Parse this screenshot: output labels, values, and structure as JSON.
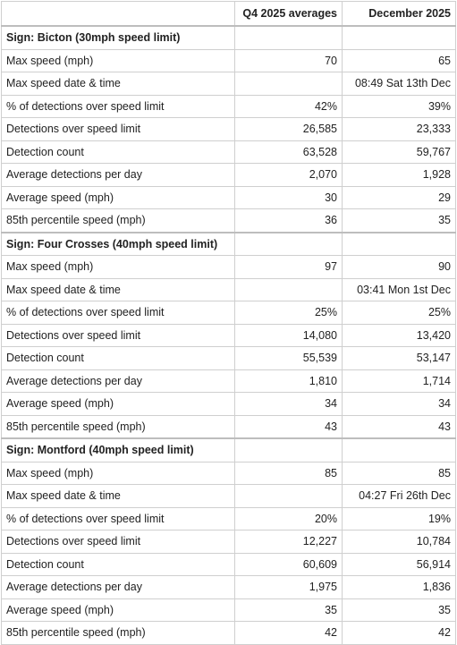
{
  "table": {
    "header": [
      "Q4 2025 averages",
      "December 2025"
    ],
    "sections": [
      {
        "title": "Sign: Bicton (30mph speed limit)",
        "rows": [
          [
            "Max speed (mph)",
            "70",
            "65"
          ],
          [
            "Max speed date & time",
            null,
            "08:49 Sat 13th Dec"
          ],
          [
            "% of detections over speed limit",
            "42%",
            "39%"
          ],
          [
            "Detections over speed limit",
            "26,585",
            "23,333"
          ],
          [
            "Detection count",
            "63,528",
            "59,767"
          ],
          [
            "Average detections per day",
            "2,070",
            "1,928"
          ],
          [
            "Average speed (mph)",
            "30",
            "29"
          ],
          [
            "85th percentile speed (mph)",
            "36",
            "35"
          ]
        ]
      },
      {
        "title": "Sign: Four Crosses (40mph speed limit)",
        "rows": [
          [
            "Max speed (mph)",
            "97",
            "90"
          ],
          [
            "Max speed date & time",
            null,
            "03:41 Mon 1st Dec"
          ],
          [
            "% of detections over speed limit",
            "25%",
            "25%"
          ],
          [
            "Detections over speed limit",
            "14,080",
            "13,420"
          ],
          [
            "Detection count",
            "55,539",
            "53,147"
          ],
          [
            "Average detections per day",
            "1,810",
            "1,714"
          ],
          [
            "Average speed (mph)",
            "34",
            "34"
          ],
          [
            "85th percentile speed (mph)",
            "43",
            "43"
          ]
        ]
      },
      {
        "title": "Sign: Montford (40mph speed limit)",
        "rows": [
          [
            "Max speed (mph)",
            "85",
            "85"
          ],
          [
            "Max speed date & time",
            null,
            "04:27 Fri 26th Dec"
          ],
          [
            "% of detections over speed limit",
            "20%",
            "19%"
          ],
          [
            "Detections over speed limit",
            "12,227",
            "10,784"
          ],
          [
            "Detection count",
            "60,609",
            "56,914"
          ],
          [
            "Average detections per day",
            "1,975",
            "1,836"
          ],
          [
            "Average speed (mph)",
            "35",
            "35"
          ],
          [
            "85th percentile speed (mph)",
            "42",
            "42"
          ]
        ]
      }
    ]
  }
}
